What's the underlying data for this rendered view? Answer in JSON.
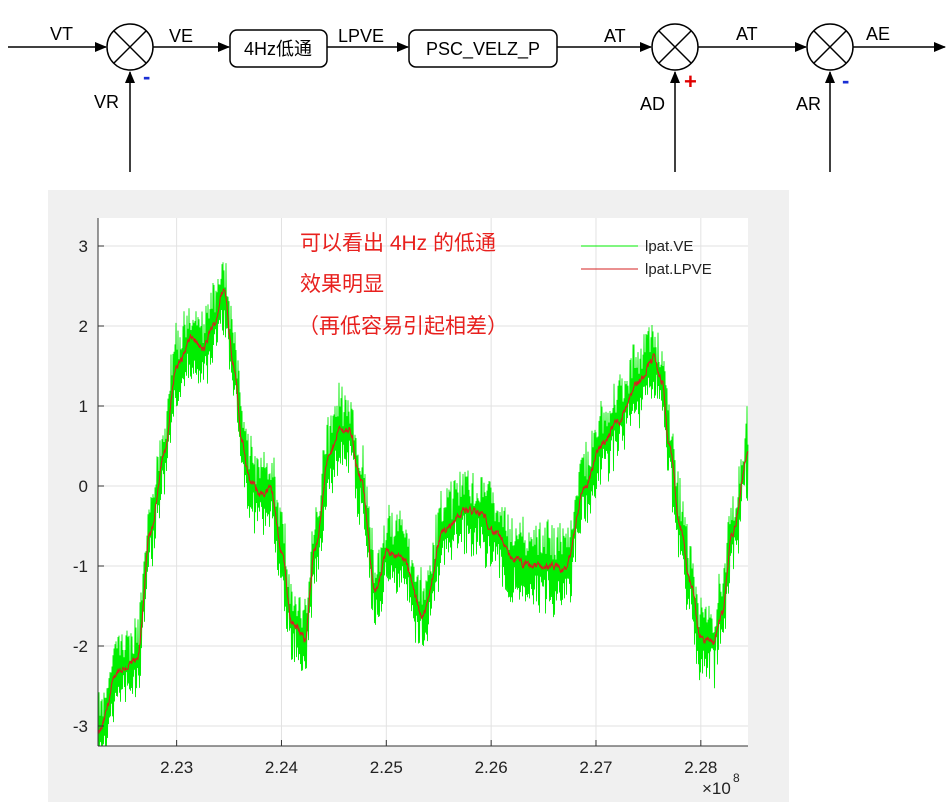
{
  "diagram": {
    "inputs": {
      "vt": "VT",
      "vr": "VR",
      "ad": "AD",
      "ar": "AR"
    },
    "signals": {
      "ve": "VE",
      "lpve": "LPVE",
      "at1": "AT",
      "at2": "AT",
      "ae": "AE"
    },
    "blocks": {
      "lowpass": "4Hz低通",
      "psc": "PSC_VELZ_P"
    },
    "signs": {
      "s1": "-",
      "s2": "+",
      "s3": "-"
    },
    "colors": {
      "minus": "#1a2fd4",
      "plus": "#e00000"
    }
  },
  "chart_data": {
    "type": "line",
    "x_exponent_label": "×10",
    "x_exponent_power": "8",
    "xlim": [
      2.2225,
      2.2845
    ],
    "ylim": [
      -3.25,
      3.35
    ],
    "xticks": [
      2.23,
      2.24,
      2.25,
      2.26,
      2.27,
      2.28
    ],
    "xtick_labels": [
      "2.23",
      "2.24",
      "2.25",
      "2.26",
      "2.27",
      "2.28"
    ],
    "yticks": [
      3,
      2,
      1,
      0,
      -1,
      -2,
      -3
    ],
    "ytick_labels": [
      "3",
      "2",
      "1",
      "0",
      "-1",
      "-2",
      "-3"
    ],
    "grid": true,
    "legend_position": "top-right",
    "annotation": [
      "可以看出 4Hz 的低通",
      "效果明显",
      "（再低容易引起相差）"
    ],
    "series": [
      {
        "name": "lpat.VE",
        "color": "#00ee00",
        "noise_amplitude": 0.45,
        "description_of_values": "same trend as lpat.LPVE with high-frequency noise"
      },
      {
        "name": "lpat.LPVE",
        "color": "#d62020",
        "x": [
          2.2225,
          2.2245,
          2.2262,
          2.2275,
          2.2288,
          2.23,
          2.2315,
          2.2325,
          2.2335,
          2.2345,
          2.2355,
          2.2362,
          2.237,
          2.238,
          2.239,
          2.24,
          2.241,
          2.2422,
          2.2432,
          2.2445,
          2.2455,
          2.2465,
          2.2475,
          2.249,
          2.2502,
          2.2515,
          2.2535,
          2.2555,
          2.2575,
          2.259,
          2.2605,
          2.262,
          2.2635,
          2.265,
          2.267,
          2.269,
          2.2705,
          2.272,
          2.274,
          2.2755,
          2.2763,
          2.277,
          2.278,
          2.279,
          2.28,
          2.2812,
          2.282,
          2.283,
          2.2845
        ],
        "y": [
          -3.1,
          -2.3,
          -2.2,
          -0.6,
          0.4,
          1.5,
          1.85,
          1.7,
          2.0,
          2.45,
          1.5,
          0.6,
          0.05,
          -0.1,
          -0.05,
          -0.8,
          -1.7,
          -1.9,
          -0.8,
          0.35,
          0.7,
          0.7,
          0.1,
          -1.3,
          -0.8,
          -0.9,
          -1.6,
          -0.55,
          -0.3,
          -0.35,
          -0.6,
          -0.9,
          -1.0,
          -1.0,
          -1.05,
          0.0,
          0.5,
          0.8,
          1.3,
          1.6,
          1.3,
          0.5,
          -0.5,
          -1.2,
          -1.9,
          -1.95,
          -1.6,
          -0.6,
          0.4
        ]
      }
    ]
  }
}
